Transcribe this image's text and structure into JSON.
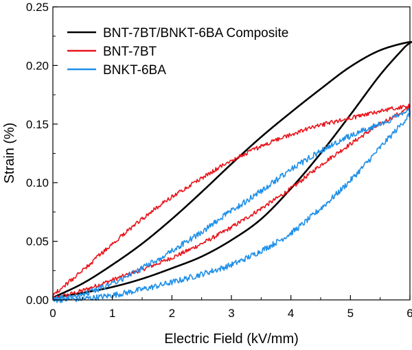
{
  "chart_data": {
    "type": "line",
    "title": "",
    "xlabel": "Electric Field (kV/mm)",
    "ylabel": "Strain (%)",
    "xlim": [
      0,
      6
    ],
    "ylim": [
      0,
      0.25
    ],
    "xticks": [
      "0",
      "1",
      "2",
      "3",
      "4",
      "5",
      "6"
    ],
    "yticks": [
      "0.00",
      "0.05",
      "0.10",
      "0.15",
      "0.20",
      "0.25"
    ],
    "grid": false,
    "legend_position": "top-left",
    "series": [
      {
        "name": "BNT-7BT/BNKT-6BA Composite",
        "color": "#000000",
        "noise": 0,
        "x": [
          0,
          0.5,
          1,
          1.5,
          2,
          2.5,
          3,
          3.5,
          4,
          4.5,
          5,
          5.5,
          5.9,
          6,
          5.5,
          5,
          4.5,
          4,
          3.5,
          3,
          2.5,
          2,
          1.5,
          1,
          0.5,
          0
        ],
        "y": [
          0.002,
          0.006,
          0.011,
          0.018,
          0.027,
          0.037,
          0.051,
          0.069,
          0.095,
          0.125,
          0.158,
          0.192,
          0.215,
          0.22,
          0.213,
          0.199,
          0.18,
          0.16,
          0.139,
          0.116,
          0.092,
          0.069,
          0.048,
          0.03,
          0.014,
          0.002
        ]
      },
      {
        "name": "BNT-7BT",
        "color": "#e8141b",
        "noise": 0.0018,
        "x": [
          0,
          0.5,
          1,
          1.5,
          2,
          2.5,
          3,
          3.5,
          4,
          4.5,
          5,
          5.5,
          6,
          5.5,
          5,
          4.5,
          4,
          3.5,
          3,
          2.5,
          2,
          1.5,
          1,
          0.5,
          0
        ],
        "y": [
          0.001,
          0.008,
          0.017,
          0.026,
          0.036,
          0.048,
          0.062,
          0.078,
          0.095,
          0.115,
          0.133,
          0.15,
          0.165,
          0.161,
          0.155,
          0.149,
          0.141,
          0.131,
          0.119,
          0.104,
          0.088,
          0.069,
          0.048,
          0.025,
          0.004
        ]
      },
      {
        "name": "BNKT-6BA",
        "color": "#1e8fe8",
        "noise": 0.0025,
        "x": [
          0,
          0.5,
          1,
          1.5,
          2,
          2.5,
          3,
          3.5,
          4,
          4.5,
          5,
          5.5,
          6,
          5.5,
          5,
          4.5,
          4,
          3.5,
          3,
          2.5,
          2,
          1.5,
          1,
          0.5,
          0
        ],
        "y": [
          0.0,
          0.001,
          0.004,
          0.009,
          0.015,
          0.022,
          0.03,
          0.042,
          0.057,
          0.078,
          0.102,
          0.13,
          0.16,
          0.15,
          0.14,
          0.127,
          0.111,
          0.093,
          0.076,
          0.058,
          0.042,
          0.027,
          0.014,
          0.005,
          0.0
        ]
      }
    ]
  }
}
